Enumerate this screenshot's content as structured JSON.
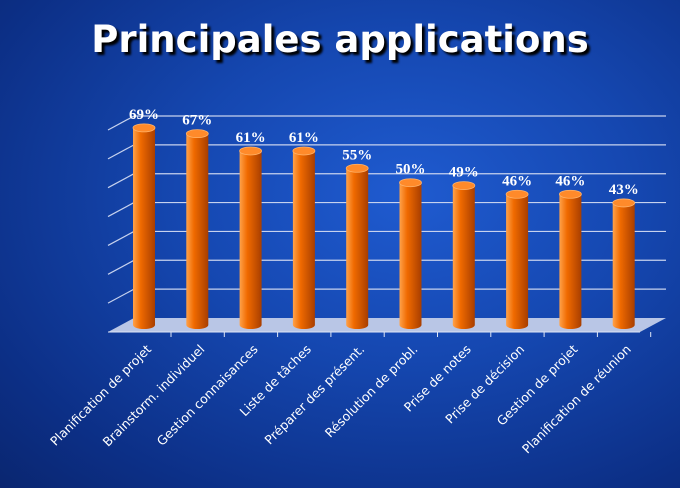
{
  "title": "Principales applications",
  "chart_data": {
    "type": "bar",
    "title": "Principales applications",
    "categories": [
      "Planification de projet",
      "Brainstorm. individuel",
      "Gestion connaisances",
      "Liste de tâches",
      "Préparer des présent.",
      "Résolution de probl.",
      "Prise de notes",
      "Prise de décision",
      "Gestion de projet",
      "Planification de réunion"
    ],
    "values": [
      69,
      67,
      61,
      61,
      55,
      50,
      49,
      46,
      46,
      43
    ],
    "value_labels": [
      "69%",
      "67%",
      "61%",
      "61%",
      "55%",
      "50%",
      "49%",
      "46%",
      "46%",
      "43%"
    ],
    "ylim": [
      0,
      70
    ],
    "grid": true,
    "colors": {
      "bar": "#f06a00",
      "bar_light": "#ffa24a",
      "bar_dark": "#a83e00",
      "grid": "#c7d2ee",
      "floor": "#b9c6e6",
      "background": "#1547b0"
    }
  }
}
